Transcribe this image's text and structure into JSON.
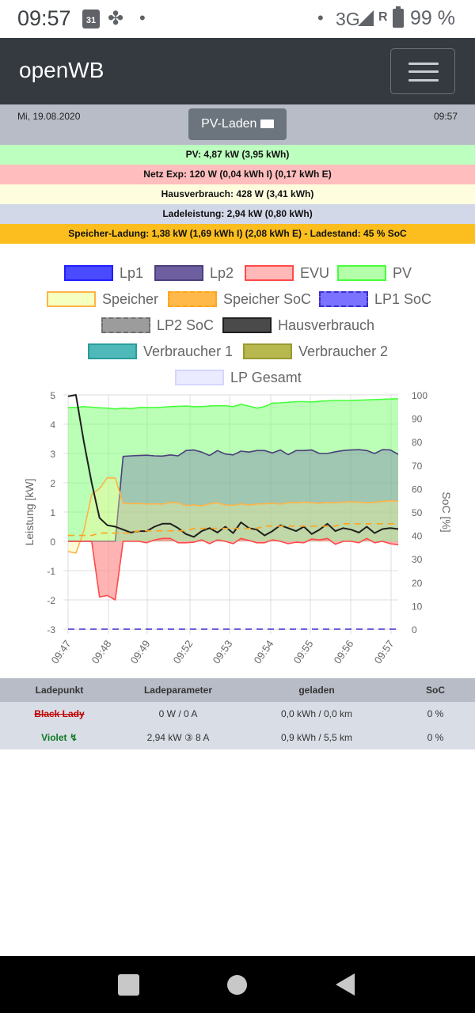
{
  "status_bar": {
    "time": "09:57",
    "calendar_day": "31",
    "network": "3G",
    "roaming": "R",
    "battery": "99 %"
  },
  "navbar": {
    "brand": "openWB"
  },
  "header": {
    "date": "Mi, 19.08.2020",
    "time": "09:57",
    "mode_button": "PV-Laden"
  },
  "info_rows": [
    {
      "text": "PV: 4,87 kW (3,95 kWh)",
      "color": "#bdffbf"
    },
    {
      "text": "Netz Exp: 120 W (0,04 kWh I) (0,17 kWh E)",
      "color": "#ffbdbd"
    },
    {
      "text": "Hausverbrauch: 428 W (3,41 kWh)",
      "color": "#fefedf"
    },
    {
      "text": "Ladeleistung: 2,94 kW (0,80 kWh)",
      "color": "#d2d8e8"
    },
    {
      "text": "Speicher-Ladung: 1,38 kW (1,69 kWh I) (2,08 kWh E) - Ladestand: 45 % SoC",
      "color": "#fcbe1e"
    }
  ],
  "legend": [
    {
      "label": "Lp1",
      "fill": "#4a4aff",
      "border": "#2020ff",
      "dashed": false
    },
    {
      "label": "Lp2",
      "fill": "#6e5fa1",
      "border": "#4b3f7d",
      "dashed": false
    },
    {
      "label": "EVU",
      "fill": "#ffb8b8",
      "border": "#ff4a4a",
      "dashed": false
    },
    {
      "label": "PV",
      "fill": "#b5ffaa",
      "border": "#48ff3a",
      "dashed": false
    },
    {
      "label": "Speicher",
      "fill": "#f5ffc0",
      "border": "#ffb347",
      "dashed": false
    },
    {
      "label": "Speicher SoC",
      "fill": "#ffb84a",
      "border": "#ffa41c",
      "dashed": true
    },
    {
      "label": "LP1 SoC",
      "fill": "#7b72ff",
      "border": "#3a2ecc",
      "dashed": true
    },
    {
      "label": "LP2 SoC",
      "fill": "#9c9c9c",
      "border": "#6f6f6f",
      "dashed": true
    },
    {
      "label": "Hausverbrauch",
      "fill": "#4a4a4a",
      "border": "#1f1f1f",
      "dashed": false
    },
    {
      "label": "Verbraucher 1",
      "fill": "#4fb8b8",
      "border": "#2a9c9c",
      "dashed": false
    },
    {
      "label": "Verbraucher 2",
      "fill": "#b7b94f",
      "border": "#999a2e",
      "dashed": false
    },
    {
      "label": "LP Gesamt",
      "fill": "#ebebff",
      "border": "#d6d6ff",
      "dashed": false
    }
  ],
  "chart_data": {
    "type": "line",
    "x_ticks": [
      "09:47",
      "09:48",
      "09:49",
      "09:52",
      "09:53",
      "09:54",
      "09:55",
      "09:56",
      "09:57"
    ],
    "y_left": {
      "label": "Leistung [kW]",
      "min": -3,
      "max": 5,
      "ticks": [
        5,
        4,
        3,
        2,
        1,
        0,
        -1,
        -2,
        -3
      ]
    },
    "y_right": {
      "label": "SoC [%]",
      "min": 0,
      "max": 100,
      "ticks": [
        100,
        90,
        80,
        70,
        60,
        50,
        40,
        30,
        20,
        10,
        0
      ]
    },
    "x_points": 43,
    "series": [
      {
        "name": "PV",
        "color": "#48ff3a",
        "fill": "rgba(130,255,120,0.55)",
        "values": [
          4.57,
          4.57,
          4.6,
          4.58,
          4.56,
          4.55,
          4.52,
          4.55,
          4.53,
          4.57,
          4.57,
          4.57,
          4.58,
          4.6,
          4.61,
          4.62,
          4.6,
          4.6,
          4.62,
          4.63,
          4.63,
          4.6,
          4.68,
          4.62,
          4.55,
          4.6,
          4.72,
          4.73,
          4.75,
          4.77,
          4.77,
          4.76,
          4.78,
          4.8,
          4.81,
          4.81,
          4.81,
          4.82,
          4.83,
          4.84,
          4.85,
          4.86,
          4.87
        ]
      },
      {
        "name": "Lp2",
        "color": "#4b3f7d",
        "fill": "rgba(110,95,170,0.35)",
        "values": [
          0.0,
          0.0,
          0.0,
          0.0,
          0.0,
          0.0,
          0.0,
          2.9,
          2.92,
          2.93,
          2.94,
          2.92,
          2.91,
          2.95,
          2.92,
          3.1,
          3.12,
          3.05,
          2.93,
          3.1,
          2.98,
          2.95,
          3.08,
          3.05,
          3.1,
          3.1,
          3.02,
          3.12,
          2.96,
          3.1,
          3.1,
          3.12,
          3.0,
          3.0,
          3.06,
          3.1,
          3.12,
          3.13,
          3.1,
          3.0,
          3.13,
          3.12,
          2.97
        ]
      },
      {
        "name": "Speicher",
        "color": "#ffb347",
        "fill": "rgba(255,245,150,0.35)",
        "values": [
          -0.35,
          -0.4,
          0.35,
          1.6,
          1.8,
          2.17,
          2.16,
          1.3,
          1.28,
          1.3,
          1.27,
          1.28,
          1.27,
          1.33,
          1.32,
          1.22,
          1.24,
          1.22,
          1.28,
          1.32,
          1.24,
          1.23,
          1.28,
          1.24,
          1.27,
          1.28,
          1.3,
          1.27,
          1.33,
          1.32,
          1.34,
          1.32,
          1.3,
          1.33,
          1.32,
          1.34,
          1.35,
          1.34,
          1.32,
          1.33,
          1.37,
          1.38,
          1.38
        ]
      },
      {
        "name": "EVU",
        "color": "#ff4a4a",
        "fill": "rgba(255,140,140,0.65)",
        "values": [
          0.0,
          0.0,
          0.0,
          0.0,
          -1.9,
          -1.85,
          -2.0,
          0.0,
          0.0,
          0.0,
          -0.05,
          0.05,
          0.1,
          0.1,
          -0.05,
          -0.05,
          -0.03,
          0.05,
          -0.08,
          0.05,
          0.0,
          -0.08,
          0.1,
          0.03,
          -0.05,
          -0.05,
          0.05,
          0.0,
          -0.08,
          -0.03,
          -0.05,
          0.08,
          0.05,
          0.1,
          -0.1,
          0.0,
          0.0,
          -0.05,
          0.1,
          -0.05,
          0.0,
          -0.08,
          -0.12
        ]
      },
      {
        "name": "Hausverbrauch",
        "color": "#1f1f1f",
        "fill": "none",
        "values": [
          4.95,
          5.0,
          3.4,
          2.0,
          0.8,
          0.55,
          0.5,
          0.4,
          0.3,
          0.35,
          0.35,
          0.5,
          0.6,
          0.6,
          0.45,
          0.25,
          0.15,
          0.35,
          0.45,
          0.3,
          0.5,
          0.28,
          0.65,
          0.45,
          0.4,
          0.2,
          0.35,
          0.55,
          0.45,
          0.35,
          0.5,
          0.25,
          0.4,
          0.6,
          0.35,
          0.45,
          0.4,
          0.3,
          0.5,
          0.28,
          0.42,
          0.45,
          0.42
        ]
      },
      {
        "name": "Speicher SoC",
        "color": "#ffa41c",
        "axis": "right",
        "dashed": true,
        "values": [
          40,
          40,
          40,
          40,
          41,
          41,
          41,
          41,
          41,
          42,
          42,
          42,
          42,
          42,
          42,
          42,
          43,
          43,
          43,
          43,
          43,
          43,
          43,
          43,
          43,
          44,
          44,
          44,
          44,
          44,
          44,
          44,
          44,
          44,
          44,
          45,
          45,
          45,
          45,
          45,
          45,
          45,
          45
        ]
      },
      {
        "name": "LP1 SoC",
        "color": "#3a2ecc",
        "axis": "right",
        "dashed": true,
        "values": [
          0,
          0,
          0,
          0,
          0,
          0,
          0,
          0,
          0,
          0,
          0,
          0,
          0,
          0,
          0,
          0,
          0,
          0,
          0,
          0,
          0,
          0,
          0,
          0,
          0,
          0,
          0,
          0,
          0,
          0,
          0,
          0,
          0,
          0,
          0,
          0,
          0,
          0,
          0,
          0,
          0,
          0,
          0
        ]
      }
    ]
  },
  "table": {
    "headers": [
      "Ladepunkt",
      "Ladeparameter",
      "geladen",
      "SoC"
    ],
    "rows": [
      {
        "name": "Black Lady",
        "params": "0 W / 0 A",
        "charged": "0,0 kWh / 0,0 km",
        "soc": "0 %"
      },
      {
        "name": "Violet ↯",
        "params": "2,94 kW ③ 8 A",
        "charged": "0,9 kWh / 5,5 km",
        "soc": "0 %"
      }
    ]
  }
}
